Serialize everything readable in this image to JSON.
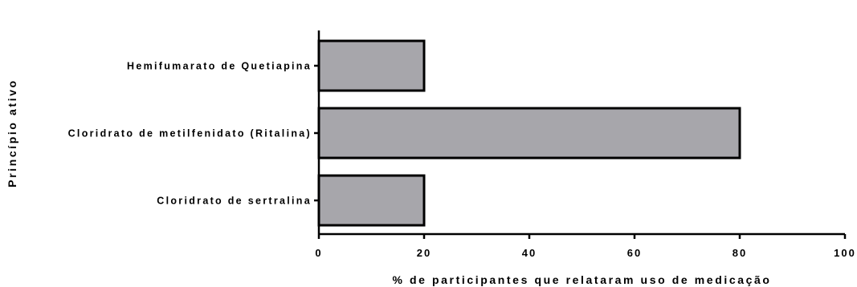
{
  "chart_data": {
    "type": "bar",
    "orientation": "horizontal",
    "categories": [
      "Hemifumarato de Quetiapina",
      "Cloridrato de metilfenidato (Ritalina)",
      "Cloridrato de sertralina"
    ],
    "values": [
      20,
      80,
      20
    ],
    "xlabel": "% de participantes que relataram uso de medicação",
    "ylabel": "Princípio ativo",
    "xlim": [
      0,
      100
    ],
    "xticks": [
      0,
      20,
      40,
      60,
      80,
      100
    ],
    "grid": false,
    "colors": {
      "bar_fill": "#a7a6ab",
      "bar_stroke": "#000000",
      "axis": "#000000"
    }
  }
}
